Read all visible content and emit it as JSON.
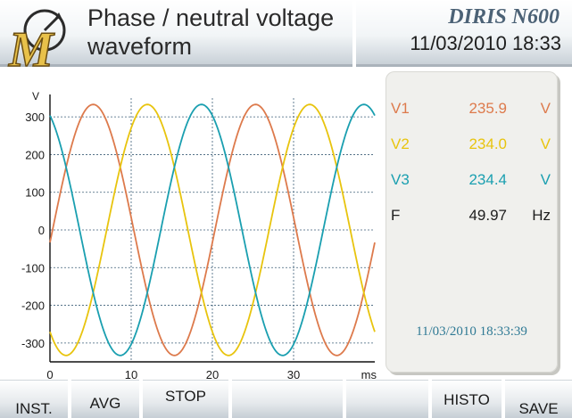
{
  "header": {
    "title": "Phase / neutral voltage waveform",
    "brand": "DIRIS N600",
    "datetime": "11/03/2010 18:33"
  },
  "logo_icon": "m-meter-logo-icon",
  "chart_data": {
    "type": "line",
    "ylabel": "V",
    "xlabel": "ms",
    "xlim": [
      0,
      40
    ],
    "ylim": [
      -350,
      350
    ],
    "yticks": [
      300,
      200,
      100,
      0,
      -100,
      -200,
      -300
    ],
    "xticks": [
      0,
      10,
      20,
      30
    ],
    "amplitude": 333,
    "period_ms": 20,
    "series": [
      {
        "name": "V1",
        "color": "#dd7a4c",
        "phase_deg": 0
      },
      {
        "name": "V2",
        "color": "#e8c40e",
        "phase_deg": -120
      },
      {
        "name": "V3",
        "color": "#1a9fb0",
        "phase_deg": 120
      }
    ],
    "grid": true
  },
  "readings": [
    {
      "name": "V1",
      "value": "235.9",
      "unit": "V",
      "cls": "v1"
    },
    {
      "name": "V2",
      "value": "234.0",
      "unit": "V",
      "cls": "v2"
    },
    {
      "name": "V3",
      "value": "234.4",
      "unit": "V",
      "cls": "v3"
    },
    {
      "name": "F",
      "value": "49.97",
      "unit": "Hz",
      "cls": "fr"
    }
  ],
  "timestamp": "11/03/2010 18:33:39",
  "buttons": [
    {
      "label": "INST.",
      "name": "inst-button"
    },
    {
      "label": "AVG",
      "name": "avg-button"
    },
    {
      "label": "STOP",
      "name": "stop-button"
    },
    {
      "label": "",
      "name": "blank-button-1"
    },
    {
      "label": "",
      "name": "blank-button-2"
    },
    {
      "label": "HISTO",
      "name": "histo-button"
    },
    {
      "label": "SAVE",
      "name": "save-button"
    }
  ]
}
